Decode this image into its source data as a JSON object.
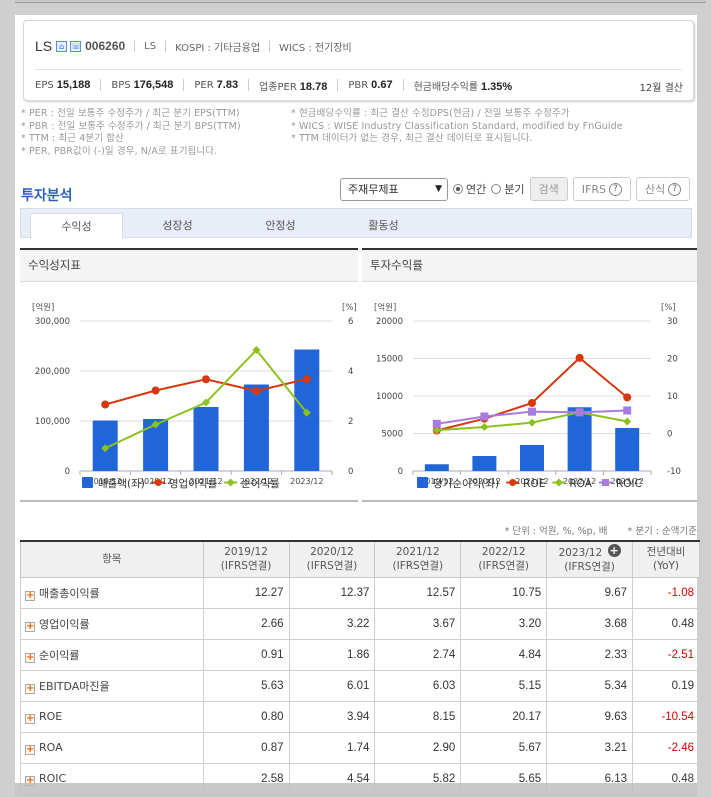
{
  "company": {
    "name": "LS",
    "code": "006260",
    "icons": [
      "home-icon",
      "phone-icon"
    ],
    "short_name": "LS",
    "market": "KOSPI : 기타금융업",
    "wics": "WICS : 전기장비",
    "metrics": [
      {
        "label": "EPS",
        "value": "15,188"
      },
      {
        "label": "BPS",
        "value": "176,548"
      },
      {
        "label": "PER",
        "value": "7.83"
      },
      {
        "label": "업종PER",
        "value": "18.78"
      },
      {
        "label": "PBR",
        "value": "0.67"
      },
      {
        "label": "현금배당수익률",
        "value": "1.35%"
      }
    ],
    "fiscal": "12월 결산"
  },
  "notes": {
    "left": [
      "* PER : 전일 보통주 수정주가 / 최근 분기 EPS(TTM)",
      "* PBR : 전일 보통주 수정주가 / 최근 분기 BPS(TTM)",
      "* TTM : 최근 4분기 합산",
      "* PER, PBR값이 (-)일 경우, N/A로 표기됩니다."
    ],
    "right": [
      "* 현금배당수익률 : 최근 결산 수정DPS(현금) / 전일 보통주 수정주가",
      "* WICS : WISE Industry Classification Standard, modified by FnGuide",
      "* TTM 데이터가 없는 경우, 최근 결산 데이터로 표시됩니다."
    ]
  },
  "section": {
    "title": "투자분석",
    "select_value": "주재무제표",
    "radio": [
      {
        "label": "연간",
        "checked": true
      },
      {
        "label": "분기",
        "checked": false
      }
    ],
    "search_label": "검색",
    "ifrs_label": "IFRS",
    "formula_label": "산식",
    "tabs": [
      "수익성",
      "성장성",
      "안정성",
      "활동성"
    ],
    "active_tab": 0
  },
  "panels": {
    "left_title": "수익성지표",
    "right_title": "투자수익률"
  },
  "chart_data": [
    {
      "type": "bar+line",
      "title": "수익성지표",
      "categories": [
        "2019/12",
        "2020/12",
        "2021/12",
        "2022/12",
        "2023/12"
      ],
      "ylabel_left": "[억원]",
      "ylabel_right": "[%]",
      "ylim_left": [
        0,
        300000
      ],
      "yticks_left": [
        "0",
        "100,000",
        "200,000",
        "300,000"
      ],
      "ylim_right": [
        0,
        6
      ],
      "yticks_right": [
        "0",
        "2",
        "4",
        "6"
      ],
      "grid": true,
      "legend_position": "bottom",
      "series": [
        {
          "name": "매출액(좌)",
          "type": "bar",
          "axis": "left",
          "color": "#2166d9",
          "values": [
            101000,
            104000,
            128000,
            173000,
            243000
          ]
        },
        {
          "name": "영업이익률",
          "type": "line",
          "axis": "right",
          "color": "#d6390f",
          "marker": "circle",
          "values": [
            2.66,
            3.22,
            3.67,
            3.2,
            3.68
          ]
        },
        {
          "name": "순이익률",
          "type": "line",
          "axis": "right",
          "color": "#8cc21f",
          "marker": "diamond",
          "values": [
            0.91,
            1.86,
            2.74,
            4.84,
            2.33
          ]
        }
      ]
    },
    {
      "type": "bar+line",
      "title": "투자수익률",
      "categories": [
        "2019/12",
        "2020/12",
        "2021/12",
        "2022/12",
        "2023/12"
      ],
      "ylabel_left": "[억원]",
      "ylabel_right": "[%]",
      "ylim_left": [
        0,
        20000
      ],
      "yticks_left": [
        "0",
        "5000",
        "10000",
        "15000",
        "20000"
      ],
      "ylim_right": [
        -10,
        30
      ],
      "yticks_right": [
        "-10",
        "0",
        "10",
        "20",
        "30"
      ],
      "grid": true,
      "legend_position": "bottom",
      "series": [
        {
          "name": "당기순이익(좌)",
          "type": "bar",
          "axis": "left",
          "color": "#2166d9",
          "values": [
            900,
            2000,
            3470,
            8500,
            5740
          ]
        },
        {
          "name": "ROE",
          "type": "line",
          "axis": "right",
          "color": "#d6390f",
          "marker": "circle",
          "values": [
            0.8,
            3.94,
            8.15,
            20.17,
            9.63
          ]
        },
        {
          "name": "ROA",
          "type": "line",
          "axis": "right",
          "color": "#8cc21f",
          "marker": "diamond",
          "values": [
            0.87,
            1.74,
            2.9,
            5.67,
            3.21
          ]
        },
        {
          "name": "ROIC",
          "type": "line",
          "axis": "right",
          "color": "#a87be0",
          "marker": "square",
          "values": [
            2.58,
            4.54,
            5.82,
            5.65,
            6.13
          ]
        }
      ]
    }
  ],
  "table": {
    "unit_note": "* 단위 : 억원, %, %p, 배",
    "quarter_note": "* 분기 : 순액기준",
    "header_item": "항목",
    "columns": [
      {
        "year": "2019/12",
        "basis": "(IFRS연결)"
      },
      {
        "year": "2020/12",
        "basis": "(IFRS연결)"
      },
      {
        "year": "2021/12",
        "basis": "(IFRS연결)"
      },
      {
        "year": "2022/12",
        "basis": "(IFRS연결)"
      },
      {
        "year": "2023/12",
        "basis": "(IFRS연결)"
      }
    ],
    "yoy_header": [
      "전년대비",
      "(YoY)"
    ],
    "rows": [
      {
        "label": "매출총이익률",
        "values": [
          "12.27",
          "12.37",
          "12.57",
          "10.75",
          "9.67"
        ],
        "yoy": "-1.08"
      },
      {
        "label": "영업이익률",
        "values": [
          "2.66",
          "3.22",
          "3.67",
          "3.20",
          "3.68"
        ],
        "yoy": "0.48"
      },
      {
        "label": "순이익률",
        "values": [
          "0.91",
          "1.86",
          "2.74",
          "4.84",
          "2.33"
        ],
        "yoy": "-2.51"
      },
      {
        "label": "EBITDA마진율",
        "values": [
          "5.63",
          "6.01",
          "6.03",
          "5.15",
          "5.34"
        ],
        "yoy": "0.19"
      },
      {
        "label": "ROE",
        "values": [
          "0.80",
          "3.94",
          "8.15",
          "20.17",
          "9.63"
        ],
        "yoy": "-10.54"
      },
      {
        "label": "ROA",
        "values": [
          "0.87",
          "1.74",
          "2.90",
          "5.67",
          "3.21"
        ],
        "yoy": "-2.46"
      },
      {
        "label": "ROIC",
        "values": [
          "2.58",
          "4.54",
          "5.82",
          "5.65",
          "6.13"
        ],
        "yoy": "0.48"
      }
    ]
  },
  "colors": {
    "accent": "#2e5fbd",
    "bar": "#2166d9",
    "line_red": "#d6390f",
    "line_green": "#8cc21f",
    "line_purple": "#a87be0",
    "negative": "#d80000"
  }
}
